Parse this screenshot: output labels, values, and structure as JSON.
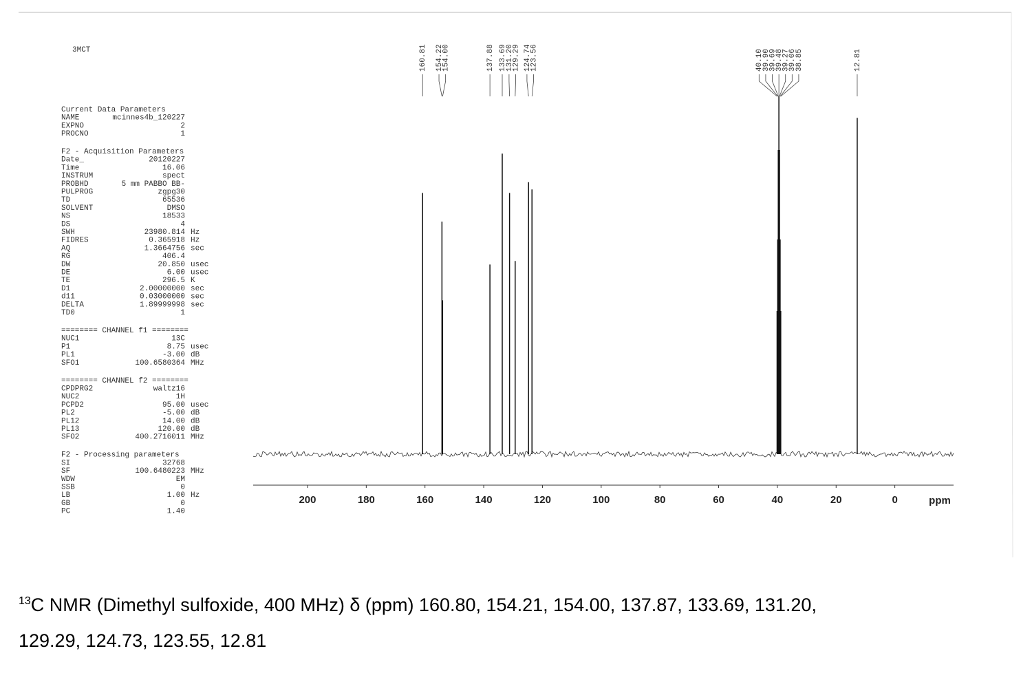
{
  "chart_data": {
    "type": "nmr",
    "title": "3MCT",
    "x": [
      160.81,
      154.22,
      154.0,
      137.88,
      133.69,
      131.2,
      129.29,
      124.74,
      123.56,
      40.1,
      39.9,
      39.69,
      39.48,
      39.27,
      39.06,
      38.85,
      12.81
    ],
    "x_labels": [
      "160.81",
      "154.22",
      "154.00",
      "137.88",
      "133.69",
      "131.20",
      "129.29",
      "124.74",
      "123.56",
      "40.10",
      "39.90",
      "39.69",
      "39.48",
      "39.27",
      "39.06",
      "38.85",
      "12.81"
    ],
    "values": [
      73,
      65,
      43,
      53,
      84,
      73,
      54,
      76,
      74,
      40,
      60,
      85,
      100,
      85,
      60,
      40,
      94
    ],
    "color": "#111111",
    "xlim": [
      218.5,
      -20
    ],
    "xticks": [
      200,
      180,
      160,
      140,
      120,
      100,
      80,
      60,
      40,
      20,
      0
    ],
    "ylim": [
      0,
      100
    ],
    "xlabel": "ppm"
  },
  "parameters": [
    {
      "title": "Current Data Parameters",
      "rows": [
        [
          "NAME",
          "mcinnes4b_120227"
        ],
        [
          "EXPNO",
          "2"
        ],
        [
          "PROCNO",
          "1"
        ]
      ]
    },
    {
      "title": "F2 - Acquisition Parameters",
      "rows": [
        [
          "Date_",
          "20120227"
        ],
        [
          "Time",
          "16.06"
        ],
        [
          "INSTRUM",
          "spect"
        ],
        [
          "PROBHD",
          "5 mm PABBO BB-"
        ],
        [
          "PULPROG",
          "zgpg30"
        ],
        [
          "TD",
          "65536"
        ],
        [
          "SOLVENT",
          "DMSO"
        ],
        [
          "NS",
          "18533"
        ],
        [
          "DS",
          "4"
        ],
        [
          "SWH",
          "23980.814",
          "Hz"
        ],
        [
          "FIDRES",
          "0.365918",
          "Hz"
        ],
        [
          "AQ",
          "1.3664756",
          "sec"
        ],
        [
          "RG",
          "406.4"
        ],
        [
          "DW",
          "20.850",
          "usec"
        ],
        [
          "DE",
          "6.00",
          "usec"
        ],
        [
          "TE",
          "296.5",
          "K"
        ],
        [
          "D1",
          "2.00000000",
          "sec"
        ],
        [
          "d11",
          "0.03000000",
          "sec"
        ],
        [
          "DELTA",
          "1.89999998",
          "sec"
        ],
        [
          "TD0",
          "1"
        ]
      ]
    },
    {
      "title": "======== CHANNEL f1 ========",
      "rows": [
        [
          "NUC1",
          "13C"
        ],
        [
          "P1",
          "8.75",
          "usec"
        ],
        [
          "PL1",
          "-3.00",
          "dB"
        ],
        [
          "SFO1",
          "100.6580364",
          "MHz"
        ]
      ]
    },
    {
      "title": "======== CHANNEL f2 ========",
      "rows": [
        [
          "CPDPRG2",
          "waltz16"
        ],
        [
          "NUC2",
          "1H"
        ],
        [
          "PCPD2",
          "95.00",
          "usec"
        ],
        [
          "PL2",
          "-5.00",
          "dB"
        ],
        [
          "PL12",
          "14.00",
          "dB"
        ],
        [
          "PL13",
          "120.00",
          "dB"
        ],
        [
          "SFO2",
          "400.2716011",
          "MHz"
        ]
      ]
    },
    {
      "title": "F2 - Processing parameters",
      "rows": [
        [
          "SI",
          "32768"
        ],
        [
          "SF",
          "100.6480223",
          "MHz"
        ],
        [
          "WDW",
          "EM"
        ],
        [
          "SSB",
          "0"
        ],
        [
          "LB",
          "1.00",
          "Hz"
        ],
        [
          "GB",
          "0"
        ],
        [
          "PC",
          "1.40"
        ]
      ]
    }
  ],
  "caption": {
    "superscript": "13",
    "line1": "C NMR (Dimethyl sulfoxide, 400 MHz) δ (ppm) 160.80, 154.21, 154.00, 137.87, 133.69, 131.20,",
    "line2": "129.29, 124.73, 123.55, 12.81"
  }
}
